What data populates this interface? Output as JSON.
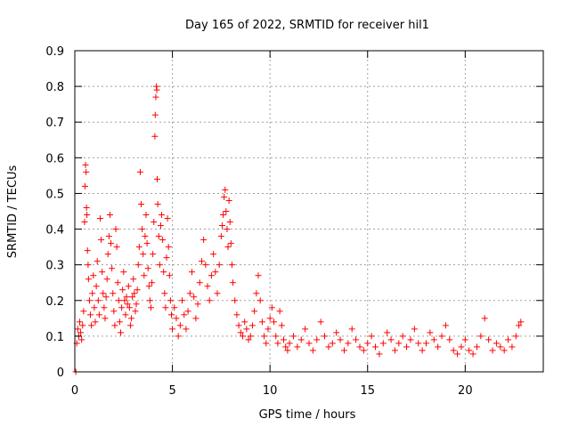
{
  "chart_data": {
    "type": "scatter",
    "title": "Day 165 of 2022, SRMTID for receiver hil1",
    "xlabel": "GPS time / hours",
    "ylabel": "SRMTID / TECUs",
    "xlim": [
      0,
      24
    ],
    "ylim": [
      0,
      0.9
    ],
    "xticks": [
      0,
      5,
      10,
      15,
      20
    ],
    "xtick_labels": [
      "0",
      "5",
      "10",
      "15",
      "20"
    ],
    "yticks": [
      0,
      0.1,
      0.2,
      0.3,
      0.4,
      0.5,
      0.6,
      0.7,
      0.8,
      0.9
    ],
    "ytick_labels": [
      "0",
      "0.1",
      "0.2",
      "0.3",
      "0.4",
      "0.5",
      "0.6",
      "0.7",
      "0.8",
      "0.9"
    ],
    "grid": true,
    "marker": "+",
    "series_color": "#ff0000",
    "series": [
      {
        "name": "SRMTID",
        "points": [
          [
            0.05,
            0.0
          ],
          [
            0.1,
            0.08
          ],
          [
            0.15,
            0.12
          ],
          [
            0.2,
            0.1
          ],
          [
            0.25,
            0.14
          ],
          [
            0.3,
            0.11
          ],
          [
            0.35,
            0.09
          ],
          [
            0.4,
            0.13
          ],
          [
            0.45,
            0.17
          ],
          [
            0.5,
            0.42
          ],
          [
            0.52,
            0.52
          ],
          [
            0.55,
            0.58
          ],
          [
            0.58,
            0.56
          ],
          [
            0.6,
            0.46
          ],
          [
            0.62,
            0.44
          ],
          [
            0.65,
            0.34
          ],
          [
            0.68,
            0.3
          ],
          [
            0.7,
            0.26
          ],
          [
            0.75,
            0.2
          ],
          [
            0.8,
            0.16
          ],
          [
            0.85,
            0.13
          ],
          [
            0.9,
            0.22
          ],
          [
            0.95,
            0.27
          ],
          [
            1.0,
            0.18
          ],
          [
            1.05,
            0.14
          ],
          [
            1.1,
            0.24
          ],
          [
            1.15,
            0.31
          ],
          [
            1.2,
            0.2
          ],
          [
            1.25,
            0.16
          ],
          [
            1.3,
            0.43
          ],
          [
            1.35,
            0.37
          ],
          [
            1.4,
            0.28
          ],
          [
            1.45,
            0.22
          ],
          [
            1.5,
            0.18
          ],
          [
            1.55,
            0.15
          ],
          [
            1.6,
            0.21
          ],
          [
            1.65,
            0.26
          ],
          [
            1.7,
            0.33
          ],
          [
            1.75,
            0.38
          ],
          [
            1.8,
            0.44
          ],
          [
            1.85,
            0.36
          ],
          [
            1.9,
            0.29
          ],
          [
            1.95,
            0.22
          ],
          [
            2.0,
            0.17
          ],
          [
            2.05,
            0.13
          ],
          [
            2.1,
            0.4
          ],
          [
            2.15,
            0.35
          ],
          [
            2.2,
            0.25
          ],
          [
            2.25,
            0.2
          ],
          [
            2.3,
            0.14
          ],
          [
            2.35,
            0.11
          ],
          [
            2.4,
            0.18
          ],
          [
            2.45,
            0.23
          ],
          [
            2.5,
            0.28
          ],
          [
            2.55,
            0.2
          ],
          [
            2.6,
            0.16
          ],
          [
            2.65,
            0.21
          ],
          [
            2.7,
            0.19
          ],
          [
            2.75,
            0.24
          ],
          [
            2.8,
            0.18
          ],
          [
            2.85,
            0.13
          ],
          [
            2.9,
            0.15
          ],
          [
            2.95,
            0.21
          ],
          [
            3.0,
            0.26
          ],
          [
            3.05,
            0.22
          ],
          [
            3.1,
            0.17
          ],
          [
            3.15,
            0.19
          ],
          [
            3.2,
            0.23
          ],
          [
            3.25,
            0.3
          ],
          [
            3.3,
            0.35
          ],
          [
            3.35,
            0.56
          ],
          [
            3.4,
            0.47
          ],
          [
            3.45,
            0.4
          ],
          [
            3.5,
            0.33
          ],
          [
            3.55,
            0.27
          ],
          [
            3.6,
            0.38
          ],
          [
            3.65,
            0.44
          ],
          [
            3.7,
            0.36
          ],
          [
            3.75,
            0.29
          ],
          [
            3.8,
            0.24
          ],
          [
            3.85,
            0.2
          ],
          [
            3.9,
            0.18
          ],
          [
            3.95,
            0.25
          ],
          [
            4.0,
            0.33
          ],
          [
            4.05,
            0.42
          ],
          [
            4.1,
            0.66
          ],
          [
            4.12,
            0.72
          ],
          [
            4.15,
            0.77
          ],
          [
            4.18,
            0.8
          ],
          [
            4.2,
            0.79
          ],
          [
            4.22,
            0.54
          ],
          [
            4.25,
            0.47
          ],
          [
            4.3,
            0.38
          ],
          [
            4.35,
            0.3
          ],
          [
            4.4,
            0.41
          ],
          [
            4.45,
            0.44
          ],
          [
            4.5,
            0.37
          ],
          [
            4.55,
            0.28
          ],
          [
            4.6,
            0.22
          ],
          [
            4.65,
            0.18
          ],
          [
            4.7,
            0.32
          ],
          [
            4.75,
            0.43
          ],
          [
            4.8,
            0.35
          ],
          [
            4.85,
            0.27
          ],
          [
            4.9,
            0.2
          ],
          [
            4.95,
            0.16
          ],
          [
            5.0,
            0.12
          ],
          [
            5.1,
            0.18
          ],
          [
            5.2,
            0.15
          ],
          [
            5.3,
            0.1
          ],
          [
            5.4,
            0.13
          ],
          [
            5.5,
            0.2
          ],
          [
            5.6,
            0.16
          ],
          [
            5.7,
            0.12
          ],
          [
            5.8,
            0.17
          ],
          [
            5.9,
            0.22
          ],
          [
            6.0,
            0.28
          ],
          [
            6.1,
            0.21
          ],
          [
            6.2,
            0.15
          ],
          [
            6.3,
            0.19
          ],
          [
            6.4,
            0.25
          ],
          [
            6.5,
            0.31
          ],
          [
            6.6,
            0.37
          ],
          [
            6.7,
            0.3
          ],
          [
            6.8,
            0.24
          ],
          [
            6.9,
            0.2
          ],
          [
            7.0,
            0.27
          ],
          [
            7.1,
            0.33
          ],
          [
            7.2,
            0.28
          ],
          [
            7.3,
            0.22
          ],
          [
            7.4,
            0.3
          ],
          [
            7.5,
            0.38
          ],
          [
            7.55,
            0.41
          ],
          [
            7.6,
            0.44
          ],
          [
            7.65,
            0.49
          ],
          [
            7.7,
            0.51
          ],
          [
            7.75,
            0.45
          ],
          [
            7.8,
            0.4
          ],
          [
            7.85,
            0.35
          ],
          [
            7.9,
            0.48
          ],
          [
            7.95,
            0.42
          ],
          [
            8.0,
            0.36
          ],
          [
            8.05,
            0.3
          ],
          [
            8.1,
            0.25
          ],
          [
            8.2,
            0.2
          ],
          [
            8.3,
            0.16
          ],
          [
            8.4,
            0.13
          ],
          [
            8.5,
            0.11
          ],
          [
            8.6,
            0.1
          ],
          [
            8.7,
            0.14
          ],
          [
            8.8,
            0.12
          ],
          [
            8.9,
            0.09
          ],
          [
            9.0,
            0.1
          ],
          [
            9.1,
            0.13
          ],
          [
            9.2,
            0.17
          ],
          [
            9.3,
            0.22
          ],
          [
            9.4,
            0.27
          ],
          [
            9.5,
            0.2
          ],
          [
            9.6,
            0.14
          ],
          [
            9.7,
            0.1
          ],
          [
            9.8,
            0.08
          ],
          [
            9.9,
            0.12
          ],
          [
            10.0,
            0.15
          ],
          [
            10.1,
            0.18
          ],
          [
            10.2,
            0.14
          ],
          [
            10.3,
            0.1
          ],
          [
            10.4,
            0.08
          ],
          [
            10.5,
            0.17
          ],
          [
            10.6,
            0.13
          ],
          [
            10.7,
            0.09
          ],
          [
            10.8,
            0.07
          ],
          [
            10.9,
            0.06
          ],
          [
            11.0,
            0.08
          ],
          [
            11.2,
            0.1
          ],
          [
            11.4,
            0.07
          ],
          [
            11.6,
            0.09
          ],
          [
            11.8,
            0.12
          ],
          [
            12.0,
            0.08
          ],
          [
            12.2,
            0.06
          ],
          [
            12.4,
            0.09
          ],
          [
            12.6,
            0.14
          ],
          [
            12.8,
            0.1
          ],
          [
            13.0,
            0.07
          ],
          [
            13.2,
            0.08
          ],
          [
            13.4,
            0.11
          ],
          [
            13.6,
            0.09
          ],
          [
            13.8,
            0.06
          ],
          [
            14.0,
            0.08
          ],
          [
            14.2,
            0.12
          ],
          [
            14.4,
            0.09
          ],
          [
            14.6,
            0.07
          ],
          [
            14.8,
            0.06
          ],
          [
            15.0,
            0.08
          ],
          [
            15.2,
            0.1
          ],
          [
            15.4,
            0.07
          ],
          [
            15.6,
            0.05
          ],
          [
            15.8,
            0.08
          ],
          [
            16.0,
            0.11
          ],
          [
            16.2,
            0.09
          ],
          [
            16.4,
            0.06
          ],
          [
            16.6,
            0.08
          ],
          [
            16.8,
            0.1
          ],
          [
            17.0,
            0.07
          ],
          [
            17.2,
            0.09
          ],
          [
            17.4,
            0.12
          ],
          [
            17.6,
            0.08
          ],
          [
            17.8,
            0.06
          ],
          [
            18.0,
            0.08
          ],
          [
            18.2,
            0.11
          ],
          [
            18.4,
            0.09
          ],
          [
            18.6,
            0.07
          ],
          [
            18.8,
            0.1
          ],
          [
            19.0,
            0.13
          ],
          [
            19.2,
            0.09
          ],
          [
            19.4,
            0.06
          ],
          [
            19.6,
            0.05
          ],
          [
            19.8,
            0.07
          ],
          [
            20.0,
            0.09
          ],
          [
            20.2,
            0.06
          ],
          [
            20.4,
            0.05
          ],
          [
            20.6,
            0.07
          ],
          [
            20.8,
            0.1
          ],
          [
            21.0,
            0.15
          ],
          [
            21.2,
            0.09
          ],
          [
            21.4,
            0.06
          ],
          [
            21.6,
            0.08
          ],
          [
            21.8,
            0.07
          ],
          [
            22.0,
            0.06
          ],
          [
            22.2,
            0.09
          ],
          [
            22.4,
            0.07
          ],
          [
            22.6,
            0.1
          ],
          [
            22.75,
            0.13
          ],
          [
            22.85,
            0.14
          ]
        ]
      }
    ]
  }
}
